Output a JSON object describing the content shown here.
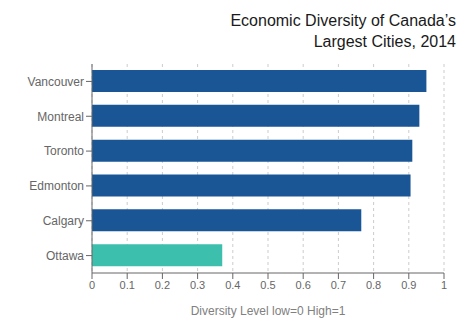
{
  "chart_data": {
    "type": "bar",
    "orientation": "horizontal",
    "title": "Economic Diversity of Canada’s\nLargest Cities, 2014",
    "xlabel": "Diversity Level low=0 High=1",
    "categories": [
      "Vancouver",
      "Montreal",
      "Toronto",
      "Edmonton",
      "Calgary",
      "Ottawa"
    ],
    "values": [
      0.95,
      0.93,
      0.91,
      0.905,
      0.765,
      0.37
    ],
    "colors": [
      "#1a5696",
      "#1a5696",
      "#1a5696",
      "#1a5696",
      "#1a5696",
      "#3cbfad"
    ],
    "xlim": [
      0,
      1.0
    ],
    "xticks": [
      0,
      0.1,
      0.2,
      0.3,
      0.4,
      0.5,
      0.6,
      0.7,
      0.8,
      0.9,
      1.0
    ],
    "grid": true
  }
}
